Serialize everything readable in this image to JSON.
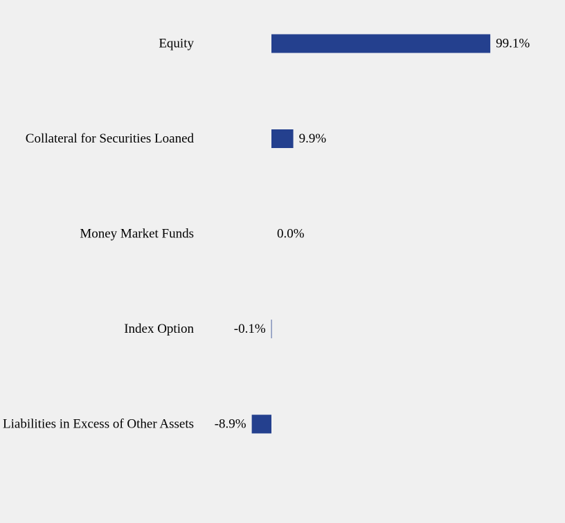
{
  "chart_data": {
    "type": "bar",
    "orientation": "horizontal",
    "categories": [
      "Equity",
      "Collateral for Securities Loaned",
      "Money Market Funds",
      "Index Option",
      "Liabilities in Excess of Other Assets"
    ],
    "values": [
      99.1,
      9.9,
      0.0,
      -0.1,
      -8.9
    ],
    "value_labels": [
      "99.1%",
      "9.9%",
      "0.0%",
      "-0.1%",
      "-8.9%"
    ],
    "unit": "%",
    "xlim": [
      -10,
      100
    ],
    "grid": false,
    "legend": "none",
    "bar_color": "#24408e"
  }
}
